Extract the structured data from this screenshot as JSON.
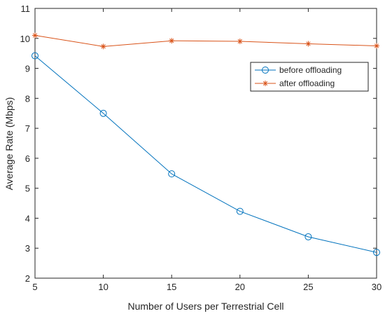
{
  "chart_data": {
    "type": "line",
    "title": "",
    "xlabel": "Number of Users per Terrestrial Cell",
    "ylabel": "Average Rate (Mbps)",
    "xlim": [
      5,
      30
    ],
    "ylim": [
      2,
      11
    ],
    "xticks": [
      5,
      10,
      15,
      20,
      25,
      30
    ],
    "yticks": [
      2,
      3,
      4,
      5,
      6,
      7,
      8,
      9,
      10,
      11
    ],
    "grid": false,
    "legend_position": "top-right",
    "x": [
      5,
      10,
      15,
      20,
      25,
      30
    ],
    "series": [
      {
        "name": "before offloading",
        "values": [
          9.42,
          7.5,
          5.48,
          4.23,
          3.38,
          2.86
        ],
        "color": "#0072BD",
        "marker": "circle"
      },
      {
        "name": "after offloading",
        "values": [
          10.1,
          9.73,
          9.92,
          9.9,
          9.82,
          9.75
        ],
        "color": "#D95319",
        "marker": "asterisk"
      }
    ]
  }
}
